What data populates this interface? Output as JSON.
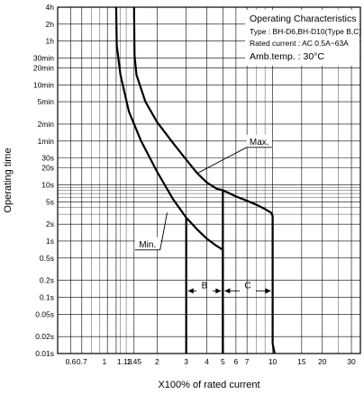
{
  "chart_data": {
    "type": "line",
    "title": "",
    "xlabel": "X100% of rated current",
    "ylabel": "Operating time",
    "x_scale": "log",
    "y_scale": "log",
    "grid": true,
    "legend_position": "top-right",
    "xlim": [
      0.5,
      34
    ],
    "ylim_seconds": [
      0.01,
      14400
    ],
    "x_ticks": [
      {
        "value": 0.6,
        "label": "0.6"
      },
      {
        "value": 0.7,
        "label": "0.7"
      },
      {
        "value": 1,
        "label": "1"
      },
      {
        "value": 1.13,
        "label": "1.13"
      },
      {
        "value": 1.45,
        "label": "1.45"
      },
      {
        "value": 2,
        "label": "2"
      },
      {
        "value": 3,
        "label": "3"
      },
      {
        "value": 4,
        "label": "4"
      },
      {
        "value": 5,
        "label": "5"
      },
      {
        "value": 6,
        "label": "6"
      },
      {
        "value": 7,
        "label": "7"
      },
      {
        "value": 10,
        "label": "10"
      },
      {
        "value": 15,
        "label": "15"
      },
      {
        "value": 20,
        "label": "20"
      },
      {
        "value": 30,
        "label": "30"
      }
    ],
    "y_ticks": [
      {
        "value": 14400,
        "label": "4h"
      },
      {
        "value": 7200,
        "label": "2h"
      },
      {
        "value": 3600,
        "label": "1h"
      },
      {
        "value": 1800,
        "label": "30min"
      },
      {
        "value": 1200,
        "label": "20min"
      },
      {
        "value": 600,
        "label": "10min"
      },
      {
        "value": 300,
        "label": "5min"
      },
      {
        "value": 120,
        "label": "2min"
      },
      {
        "value": 60,
        "label": "1min"
      },
      {
        "value": 30,
        "label": "30s"
      },
      {
        "value": 20,
        "label": "20s"
      },
      {
        "value": 10,
        "label": "10s"
      },
      {
        "value": 5,
        "label": "5s"
      },
      {
        "value": 2,
        "label": "2s"
      },
      {
        "value": 1,
        "label": "1s"
      },
      {
        "value": 0.5,
        "label": "0.5s"
      },
      {
        "value": 0.2,
        "label": "0.2s"
      },
      {
        "value": 0.1,
        "label": "0.1s"
      },
      {
        "value": 0.05,
        "label": "0.05s"
      },
      {
        "value": 0.02,
        "label": "0.02s"
      },
      {
        "value": 0.01,
        "label": "0.01s"
      }
    ],
    "legend_lines": [
      "Operating Characteristics",
      "Type : BH-D6,BH-D10(Type B,C)",
      "Rated current : AC 0.5A~63A",
      "Amb.temp. : 30°C"
    ],
    "series": [
      {
        "name": "Max.",
        "points": [
          [
            1.45,
            14400
          ],
          [
            1.46,
            2000
          ],
          [
            1.5,
            900
          ],
          [
            1.7,
            300
          ],
          [
            2,
            130
          ],
          [
            2.5,
            55
          ],
          [
            3,
            28
          ],
          [
            3.5,
            16
          ],
          [
            4,
            11
          ],
          [
            4.6,
            8.5
          ],
          [
            5,
            8
          ],
          [
            6,
            6.2
          ],
          [
            7,
            5.2
          ],
          [
            8,
            4.4
          ],
          [
            9,
            3.7
          ],
          [
            9.8,
            3.2
          ],
          [
            10,
            2.8
          ],
          [
            10,
            0.015
          ],
          [
            10.3,
            0.01
          ]
        ]
      },
      {
        "name": "Min.",
        "points": [
          [
            1.13,
            14400
          ],
          [
            1.14,
            3000
          ],
          [
            1.2,
            900
          ],
          [
            1.35,
            200
          ],
          [
            1.6,
            60
          ],
          [
            2,
            17
          ],
          [
            2.5,
            5.5
          ],
          [
            3,
            2.6
          ],
          [
            3.5,
            1.6
          ],
          [
            4,
            1.1
          ],
          [
            4.5,
            0.85
          ],
          [
            5,
            0.7
          ],
          [
            5,
            0.01
          ]
        ]
      }
    ],
    "tripping_zone_lines": [
      {
        "x": 3,
        "from": 0.01,
        "to": 2.6
      },
      {
        "x": 5,
        "from": 0.01,
        "to": 8
      }
    ],
    "annotations": [
      {
        "text": "Max.",
        "at": [
          8.3,
          60
        ],
        "points_to": [
          3.5,
          16
        ]
      },
      {
        "text": "Min.",
        "at": [
          1.75,
          0.9
        ],
        "points_to": [
          2.3,
          3.2
        ]
      },
      {
        "text": "B",
        "range": [
          3,
          5
        ],
        "y": 0.13
      },
      {
        "text": "C",
        "range": [
          5,
          10
        ],
        "y": 0.13
      }
    ]
  }
}
